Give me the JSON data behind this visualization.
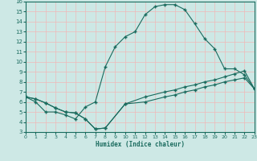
{
  "title": "",
  "xlabel": "Humidex (Indice chaleur)",
  "xlim": [
    0,
    23
  ],
  "ylim": [
    3,
    16
  ],
  "xticks": [
    0,
    1,
    2,
    3,
    4,
    5,
    6,
    7,
    8,
    9,
    10,
    11,
    12,
    13,
    14,
    15,
    16,
    17,
    18,
    19,
    20,
    21,
    22,
    23
  ],
  "yticks": [
    3,
    4,
    5,
    6,
    7,
    8,
    9,
    10,
    11,
    12,
    13,
    14,
    15,
    16
  ],
  "bg_color": "#cde8e5",
  "grid_color": "#f0b8b8",
  "line_color": "#1a6b5e",
  "line1_x": [
    0,
    1,
    2,
    3,
    4,
    5,
    6,
    7,
    8,
    9,
    10,
    11,
    12,
    13,
    14,
    15,
    16,
    17,
    18,
    19,
    20,
    21,
    22,
    23
  ],
  "line1_y": [
    6.5,
    6.0,
    5.0,
    5.0,
    4.7,
    4.3,
    5.5,
    6.0,
    9.5,
    11.5,
    12.5,
    13.0,
    14.7,
    15.5,
    15.7,
    15.7,
    15.2,
    13.8,
    12.3,
    11.3,
    9.3,
    9.3,
    8.7,
    7.3
  ],
  "line2_x": [
    0,
    1,
    2,
    3,
    4,
    5,
    6,
    7,
    8,
    10,
    12,
    14,
    15,
    16,
    17,
    18,
    19,
    20,
    21,
    22,
    23
  ],
  "line2_y": [
    6.5,
    6.3,
    5.9,
    5.4,
    5.0,
    4.9,
    4.3,
    3.3,
    3.4,
    5.8,
    6.5,
    7.0,
    7.2,
    7.5,
    7.7,
    8.0,
    8.2,
    8.5,
    8.8,
    9.1,
    7.3
  ],
  "line3_x": [
    0,
    1,
    2,
    3,
    4,
    5,
    6,
    7,
    8,
    10,
    12,
    14,
    15,
    16,
    17,
    18,
    19,
    20,
    21,
    22,
    23
  ],
  "line3_y": [
    6.5,
    6.3,
    5.9,
    5.4,
    5.0,
    4.9,
    4.3,
    3.3,
    3.4,
    5.8,
    6.0,
    6.5,
    6.7,
    7.0,
    7.2,
    7.5,
    7.7,
    8.0,
    8.2,
    8.4,
    7.3
  ]
}
